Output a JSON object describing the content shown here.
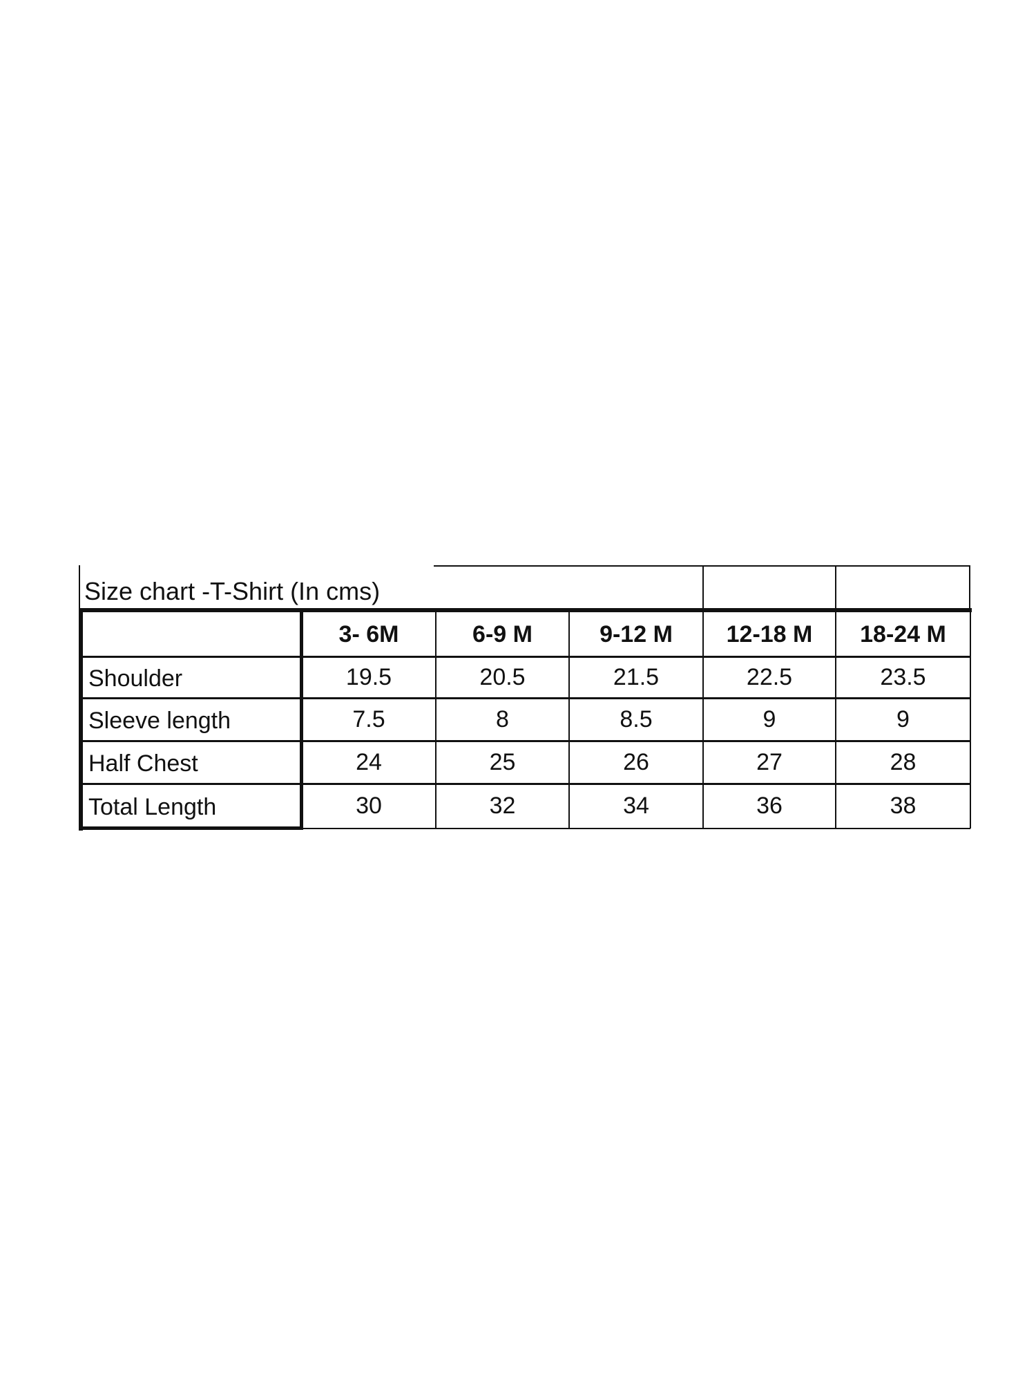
{
  "title": "Size chart -T-Shirt  (In cms)",
  "columns": [
    "3- 6M",
    "6-9 M",
    "9-12 M",
    "12-18 M",
    "18-24 M"
  ],
  "rows": [
    {
      "label": "Shoulder",
      "values": [
        "19.5",
        "20.5",
        "21.5",
        "22.5",
        "23.5"
      ]
    },
    {
      "label": "Sleeve length",
      "values": [
        "7.5",
        "8",
        "8.5",
        "9",
        "9"
      ]
    },
    {
      "label": "Half Chest",
      "values": [
        "24",
        "25",
        "26",
        "27",
        "28"
      ]
    },
    {
      "label": "Total Length",
      "values": [
        "30",
        "32",
        "34",
        "36",
        "38"
      ]
    }
  ]
}
